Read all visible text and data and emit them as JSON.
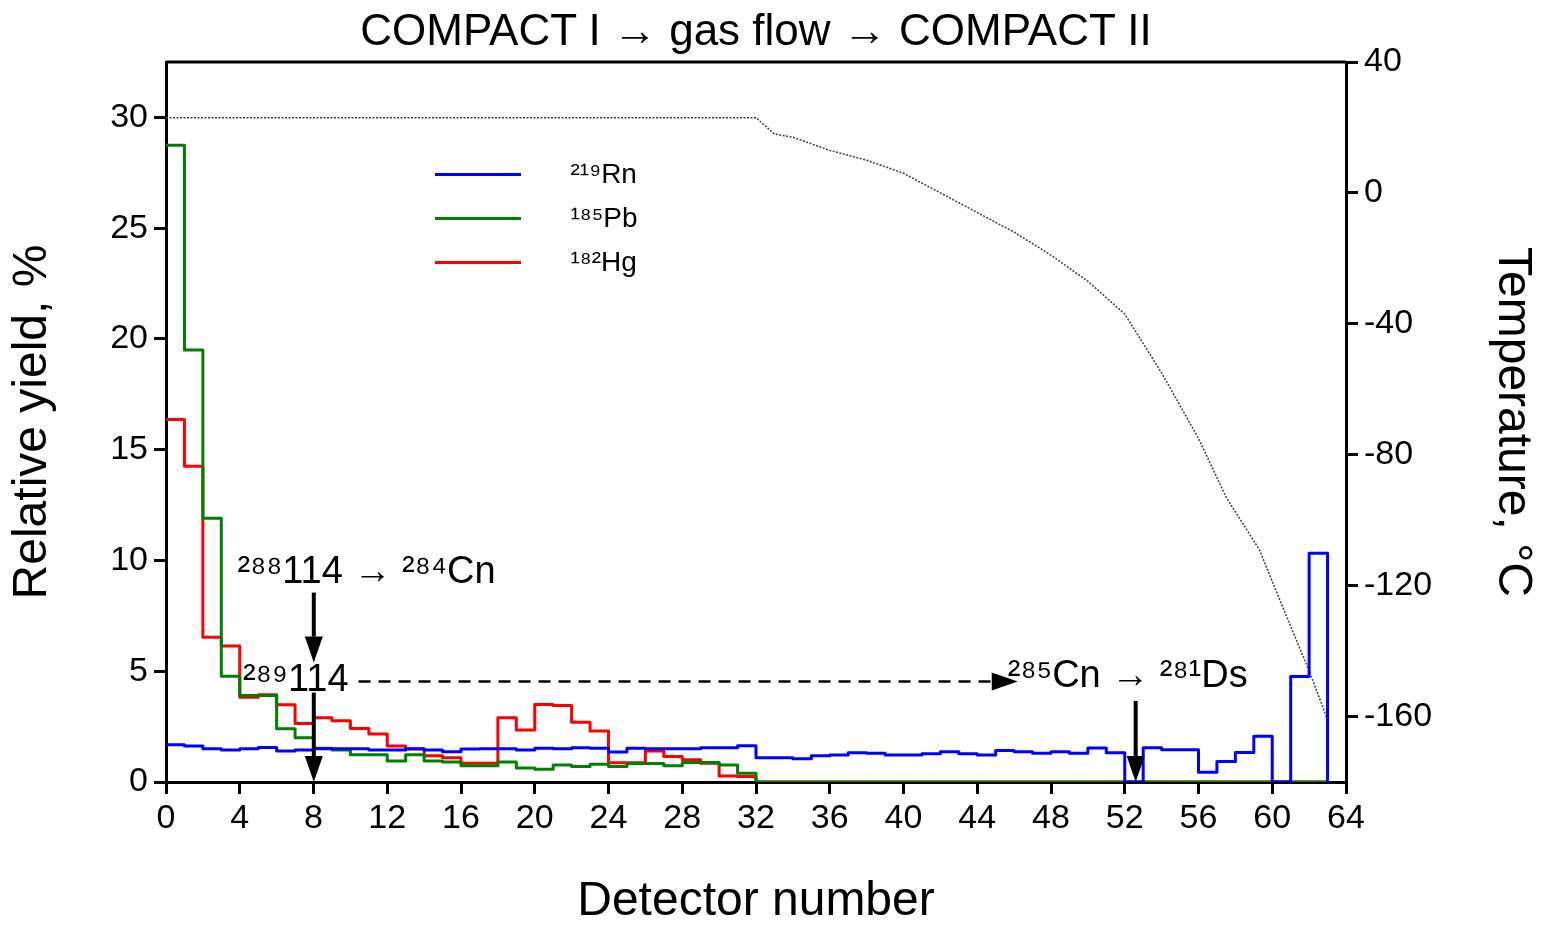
{
  "chart_data": {
    "type": "histogram",
    "title": "COMPACT I → gas flow → COMPACT II",
    "xlabel": "Detector number",
    "ylabel": "Relative yield, %",
    "y2label": "Temperature, °C",
    "bins": [
      0,
      1,
      2,
      3,
      4,
      5,
      6,
      7,
      8,
      9,
      10,
      11,
      12,
      13,
      14,
      15,
      16,
      17,
      18,
      19,
      20,
      21,
      22,
      23,
      24,
      25,
      26,
      27,
      28,
      29,
      30,
      31,
      32,
      33,
      34,
      35,
      36,
      37,
      38,
      39,
      40,
      41,
      42,
      43,
      44,
      45,
      46,
      47,
      48,
      49,
      50,
      51,
      52,
      53,
      54,
      55,
      56,
      57,
      58,
      59,
      60,
      61,
      62,
      63
    ],
    "series": [
      {
        "name": "²¹⁹Rn",
        "color": "#0000ff",
        "values": [
          1.68,
          1.63,
          1.5,
          1.45,
          1.5,
          1.56,
          1.4,
          1.45,
          1.5,
          1.5,
          1.5,
          1.45,
          1.45,
          1.5,
          1.45,
          1.37,
          1.49,
          1.5,
          1.5,
          1.45,
          1.52,
          1.5,
          1.55,
          1.52,
          1.35,
          1.52,
          1.5,
          1.5,
          1.5,
          1.55,
          1.55,
          1.64,
          1.09,
          1.1,
          1.05,
          1.19,
          1.22,
          1.32,
          1.3,
          1.22,
          1.22,
          1.28,
          1.37,
          1.28,
          1.22,
          1.42,
          1.37,
          1.3,
          1.37,
          1.3,
          1.53,
          1.32,
          0,
          1.55,
          1.46,
          1.46,
          0.44,
          0.93,
          1.33,
          2.06,
          0,
          4.76,
          10.33
        ]
      },
      {
        "name": "¹⁸⁵Pb",
        "color": "#008000",
        "values": [
          28.74,
          19.5,
          11.9,
          4.77,
          3.9,
          3.9,
          2.4,
          2.0,
          1.52,
          1.45,
          1.23,
          1.23,
          0.95,
          1.23,
          0.95,
          0.9,
          0.73,
          0.73,
          0.9,
          0.63,
          0.57,
          0.77,
          0.7,
          0.8,
          0.7,
          0.84,
          0.84,
          0.73,
          0.88,
          0.88,
          0.77,
          0.4,
          0,
          0,
          0,
          0,
          0,
          0,
          0,
          0,
          0,
          0,
          0,
          0,
          0,
          0,
          0,
          0,
          0,
          0,
          0,
          0,
          0,
          0,
          0,
          0,
          0,
          0,
          0,
          0,
          0,
          0,
          0
        ]
      },
      {
        "name": "¹⁸²Hg",
        "color": "#ff0000",
        "values": [
          16.36,
          14.25,
          6.53,
          6.14,
          3.82,
          3.94,
          3.49,
          2.64,
          2.9,
          2.76,
          2.41,
          2.17,
          1.63,
          1.49,
          1.19,
          1.1,
          0.85,
          0.85,
          2.9,
          2.35,
          3.5,
          3.45,
          2.7,
          2.3,
          0.87,
          0.87,
          1.4,
          1.15,
          1.0,
          0.85,
          0.27,
          0.25,
          0,
          0,
          0,
          0,
          0,
          0,
          0,
          0,
          0,
          0,
          0,
          0,
          0,
          0,
          0,
          0,
          0,
          0,
          0,
          0,
          0,
          0,
          0,
          0,
          0,
          0,
          0,
          0,
          0,
          0,
          0
        ]
      },
      {
        "type": "line",
        "axis": "y2",
        "color": "#404040",
        "line_style": "dotted",
        "marker": "none",
        "x": [
          0,
          32,
          33,
          34,
          35,
          36,
          38,
          40,
          42,
          44,
          46,
          48,
          50,
          52,
          54,
          56,
          57.5,
          59.3,
          60.6,
          62,
          63
        ],
        "values": [
          23,
          23,
          18,
          17,
          15,
          13,
          10,
          6,
          0,
          -6,
          -12,
          -19,
          -27,
          -37,
          -55,
          -75,
          -93,
          -109,
          -127,
          -146,
          -161
        ]
      }
    ],
    "xlim": [
      0,
      64
    ],
    "xticks": [
      0,
      4,
      8,
      12,
      16,
      20,
      24,
      28,
      32,
      36,
      40,
      44,
      48,
      52,
      56,
      60,
      64
    ],
    "ylim": [
      0,
      32.5
    ],
    "yticks": [
      0,
      5,
      10,
      15,
      20,
      25,
      30
    ],
    "y2lim": [
      -180,
      40
    ],
    "y2ticks": [
      -160,
      -120,
      -80,
      -40,
      0,
      40
    ],
    "legend": "top",
    "grid": false,
    "annotations": [
      "²⁸⁸114 → ²⁸⁴Cn",
      "²⁸⁹114",
      "²⁸⁵Cn → ²⁸¹Ds"
    ]
  }
}
